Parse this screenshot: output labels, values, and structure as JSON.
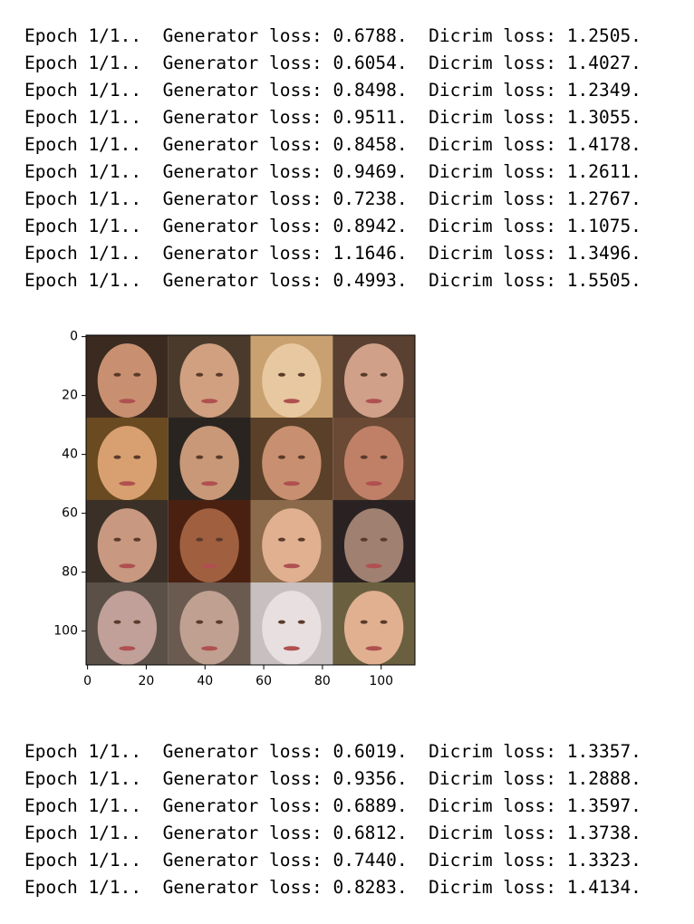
{
  "log_before": {
    "lines": [
      "Epoch 1/1..  Generator loss: 0.6788.  Dicrim loss: 1.2505.",
      "Epoch 1/1..  Generator loss: 0.6054.  Dicrim loss: 1.4027.",
      "Epoch 1/1..  Generator loss: 0.8498.  Dicrim loss: 1.2349.",
      "Epoch 1/1..  Generator loss: 0.9511.  Dicrim loss: 1.3055.",
      "Epoch 1/1..  Generator loss: 0.8458.  Dicrim loss: 1.4178.",
      "Epoch 1/1..  Generator loss: 0.9469.  Dicrim loss: 1.2611.",
      "Epoch 1/1..  Generator loss: 0.7238.  Dicrim loss: 1.2767.",
      "Epoch 1/1..  Generator loss: 0.8942.  Dicrim loss: 1.1075.",
      "Epoch 1/1..  Generator loss: 1.1646.  Dicrim loss: 1.3496.",
      "Epoch 1/1..  Generator loss: 0.4993.  Dicrim loss: 1.5505."
    ]
  },
  "figure": {
    "xlim": [
      -0.5,
      111.5
    ],
    "ylim": [
      111.5,
      -0.5
    ],
    "xticks": [
      0,
      20,
      40,
      60,
      80,
      100
    ],
    "yticks": [
      0,
      20,
      40,
      60,
      80,
      100
    ]
  },
  "log_after": {
    "lines": [
      "Epoch 1/1..  Generator loss: 0.6019.  Dicrim loss: 1.3357.",
      "Epoch 1/1..  Generator loss: 0.9356.  Dicrim loss: 1.2888.",
      "Epoch 1/1..  Generator loss: 0.6889.  Dicrim loss: 1.3597.",
      "Epoch 1/1..  Generator loss: 0.6812.  Dicrim loss: 1.3738.",
      "Epoch 1/1..  Generator loss: 0.7440.  Dicrim loss: 1.3323.",
      "Epoch 1/1..  Generator loss: 0.8283.  Dicrim loss: 1.4134."
    ]
  }
}
